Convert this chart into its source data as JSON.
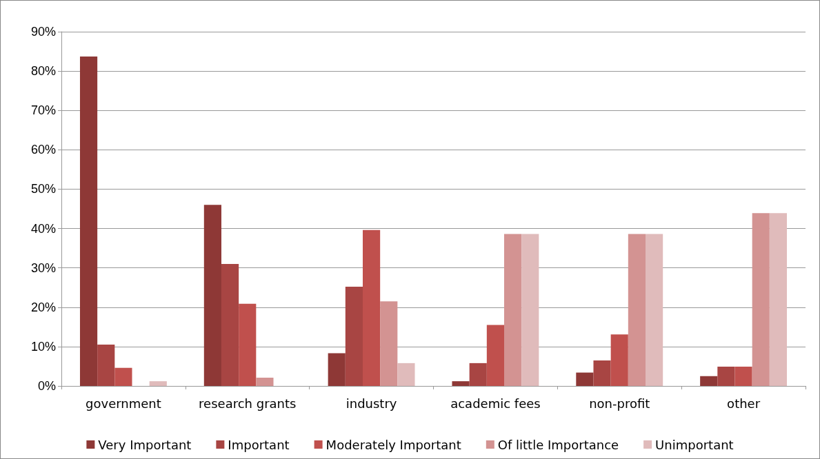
{
  "chart_data": {
    "type": "bar",
    "categories": [
      "government",
      "research grants",
      "industry",
      "academic fees",
      "non-profit",
      "other"
    ],
    "series": [
      {
        "name": "Very Important",
        "color": "#8e3836",
        "values": [
          83.7,
          46.0,
          8.3,
          1.2,
          3.4,
          2.5
        ]
      },
      {
        "name": "Important",
        "color": "#a84543",
        "values": [
          10.5,
          31.0,
          25.2,
          5.8,
          6.5,
          4.9
        ]
      },
      {
        "name": "Moderately Important",
        "color": "#c0504d",
        "values": [
          4.6,
          20.9,
          39.6,
          15.5,
          13.1,
          4.9
        ]
      },
      {
        "name": "Of little Importance",
        "color": "#d39392",
        "values": [
          0,
          2.1,
          21.5,
          38.6,
          38.6,
          43.9
        ]
      },
      {
        "name": "Unimportant",
        "color": "#e0bbbb",
        "values": [
          1.2,
          0,
          5.8,
          38.6,
          38.6,
          43.9
        ]
      }
    ],
    "ylim": [
      0,
      90
    ],
    "yticks": [
      {
        "value": 0,
        "label": "0%"
      },
      {
        "value": 10,
        "label": "10%"
      },
      {
        "value": 20,
        "label": "20%"
      },
      {
        "value": 30,
        "label": "30%"
      },
      {
        "value": 40,
        "label": "40%"
      },
      {
        "value": 50,
        "label": "50%"
      },
      {
        "value": 60,
        "label": "60%"
      },
      {
        "value": 70,
        "label": "70%"
      },
      {
        "value": 80,
        "label": "80%"
      },
      {
        "value": 90,
        "label": "90%"
      }
    ],
    "grid": "y",
    "legend": "bottom"
  }
}
